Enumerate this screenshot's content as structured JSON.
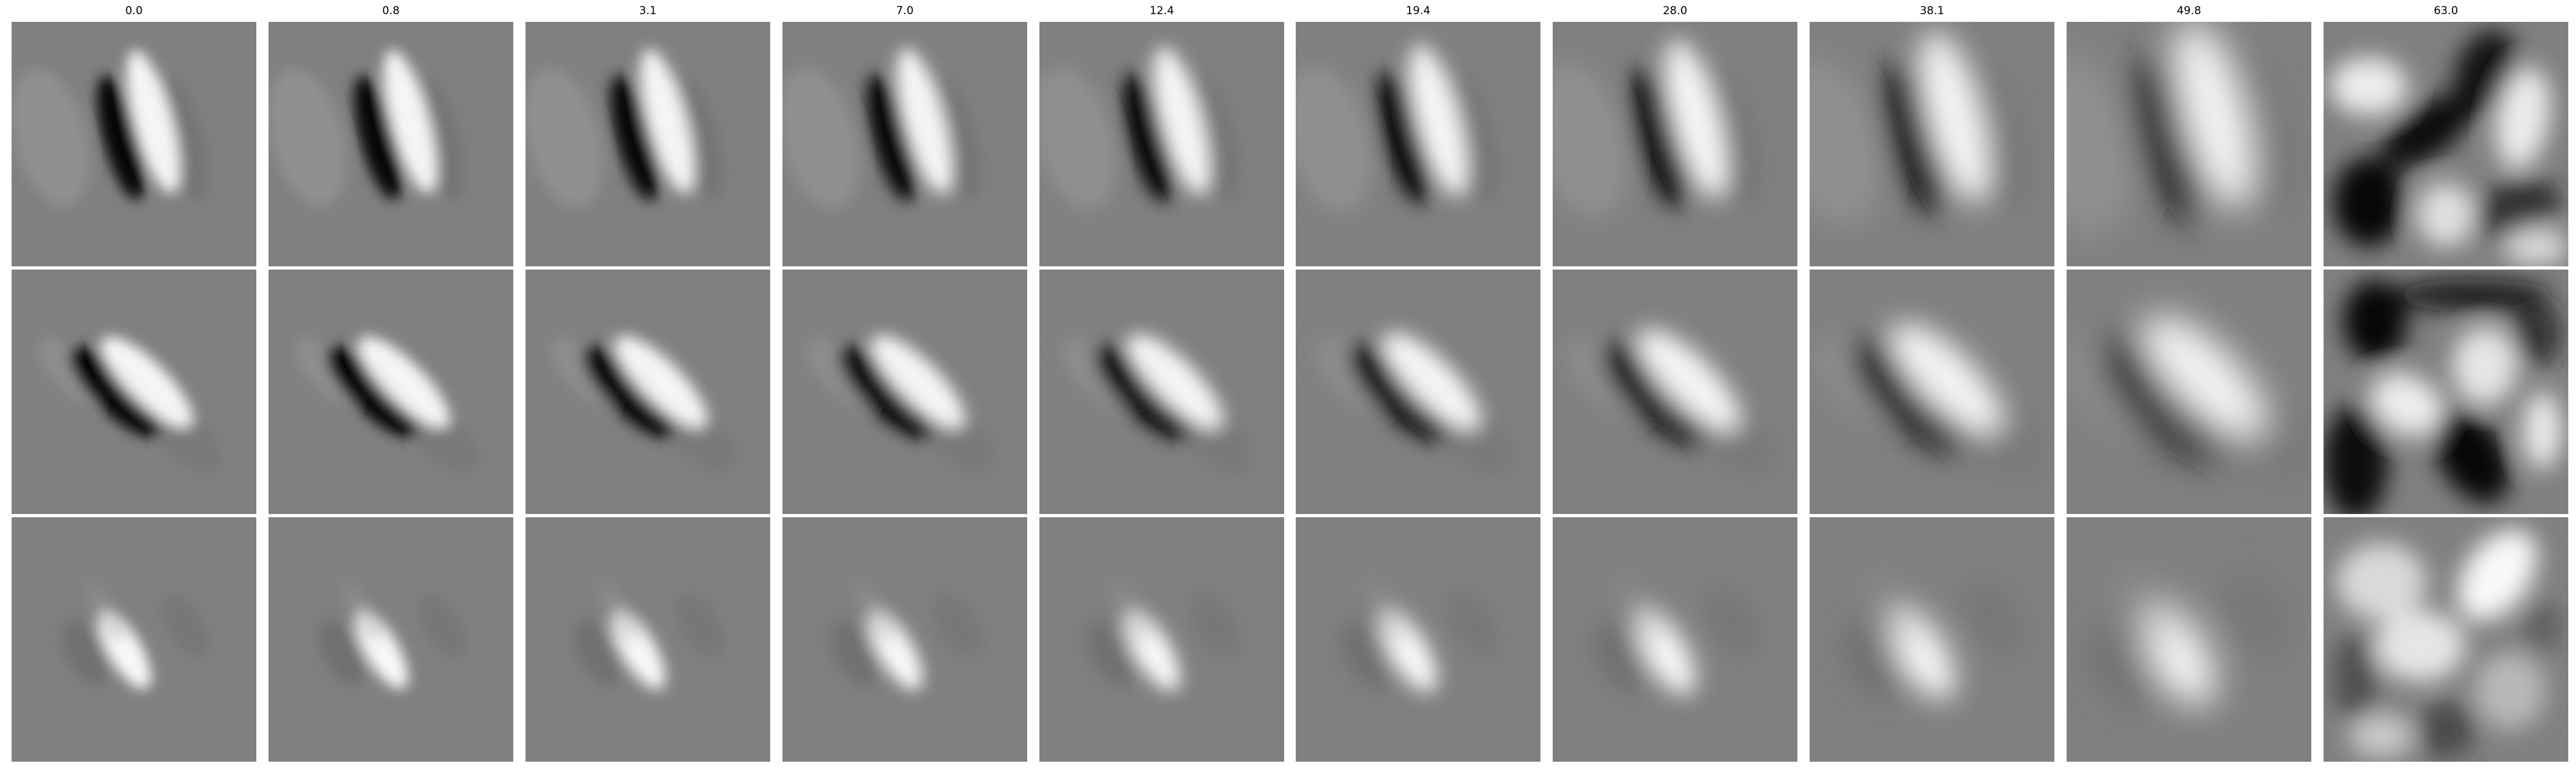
{
  "figure": {
    "columns": [
      {
        "title": "0.0",
        "blur": 0.0,
        "rf_scale": 1.0
      },
      {
        "title": "0.8",
        "blur": 0.2,
        "rf_scale": 1.0
      },
      {
        "title": "3.1",
        "blur": 0.5,
        "rf_scale": 1.02
      },
      {
        "title": "7.0",
        "blur": 1.0,
        "rf_scale": 1.04
      },
      {
        "title": "12.4",
        "blur": 1.6,
        "rf_scale": 1.07
      },
      {
        "title": "19.4",
        "blur": 2.4,
        "rf_scale": 1.12
      },
      {
        "title": "28.0",
        "blur": 3.6,
        "rf_scale": 1.22
      },
      {
        "title": "38.1",
        "blur": 5.5,
        "rf_scale": 1.4
      },
      {
        "title": "49.8",
        "blur": 8.0,
        "rf_scale": 1.62
      },
      {
        "title": "63.0",
        "blur": 14.0,
        "rf_scale": 1.0
      }
    ],
    "rows": [
      {
        "filter": "vertical-dark-bright-pair"
      },
      {
        "filter": "diagonal-dark-bright-pair"
      },
      {
        "filter": "diagonal-bright-blob"
      }
    ]
  }
}
